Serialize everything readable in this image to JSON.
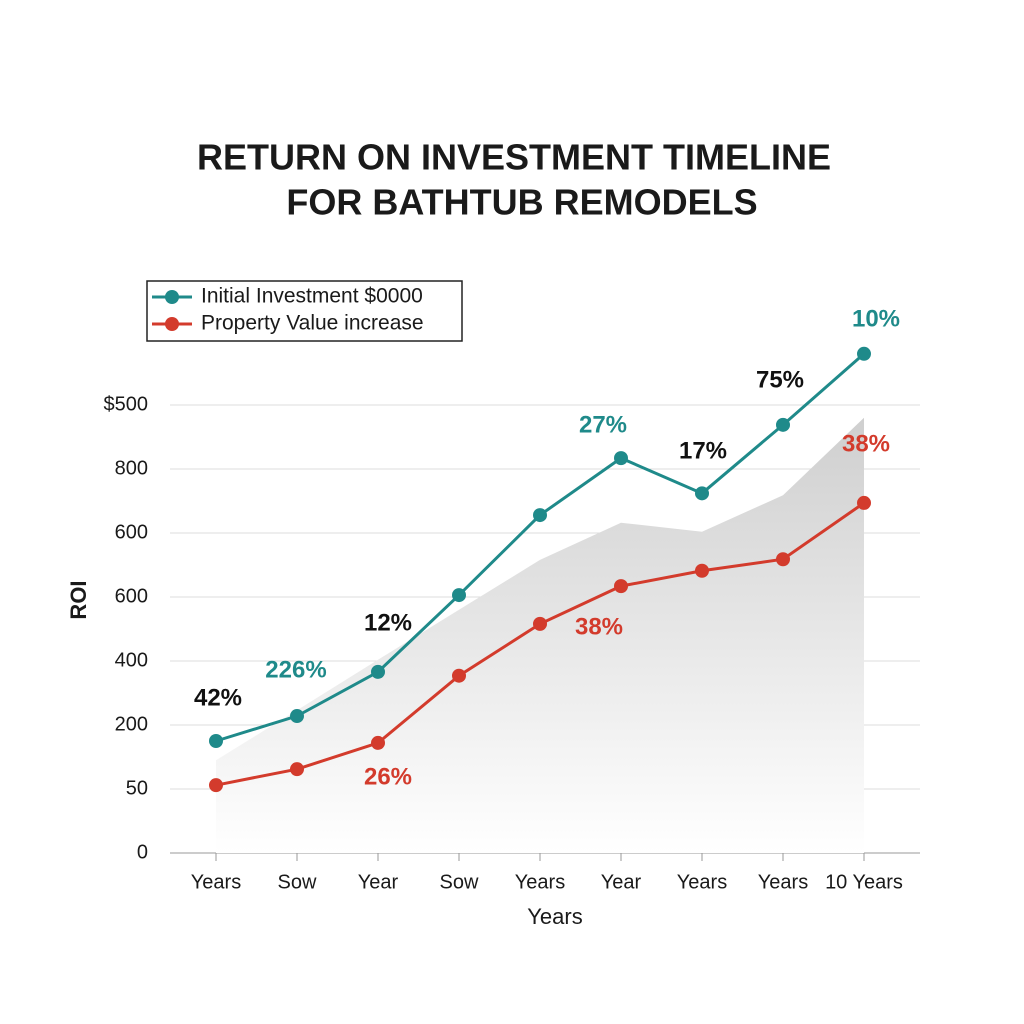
{
  "chart_data": {
    "type": "line",
    "title": [
      "RETURN ON INVESTMENT TIMELINE",
      "FOR BATHTUB REMODELS"
    ],
    "y_label": "ROI",
    "x_label": "Years",
    "categories": [
      "Years",
      "Sow",
      "Year",
      "Sow",
      "Years",
      "Year",
      "Years",
      "Years",
      "10 Years"
    ],
    "ylim": [
      0,
      800
    ],
    "yticks": [
      0,
      {
        "value": 100,
        "label": "50"
      },
      {
        "value": 200,
        "label": "200"
      },
      {
        "value": 300,
        "label": "400"
      },
      {
        "value": 400,
        "label": "600"
      },
      {
        "value": 500,
        "label": "600"
      },
      {
        "value": 600,
        "label": "800"
      },
      {
        "value": 700,
        "label": "$500"
      }
    ],
    "grid": true,
    "legend": "top-left",
    "series": [
      {
        "name": "Initial Investment  $0000",
        "color": "#1f8a8a",
        "values": [
          175,
          214,
          283,
          403,
          528,
          617,
          562,
          669,
          780
        ]
      },
      {
        "name": "Property Value increase",
        "color": "#d33b2c",
        "values": [
          106,
          131,
          172,
          277,
          358,
          417,
          441,
          459,
          547
        ]
      },
      {
        "type": "area",
        "color": "#d4d4d4",
        "values": [
          145,
          223,
          302,
          380,
          458,
          516,
          502,
          559,
          680
        ]
      }
    ],
    "annotations": [
      {
        "text": "42%",
        "color": "#111111"
      },
      {
        "text": "226%",
        "color": "#1f8a8a"
      },
      {
        "text": "12%",
        "color": "#111111"
      },
      {
        "text": "27%",
        "color": "#1f8a8a"
      },
      {
        "text": "17%",
        "color": "#111111"
      },
      {
        "text": "75%",
        "color": "#111111"
      },
      {
        "text": "10%",
        "color": "#1f8a8a"
      },
      {
        "text": "38%",
        "color": "#d33b2c"
      },
      {
        "text": "38%",
        "color": "#d33b2c"
      },
      {
        "text": "26%",
        "color": "#d33b2c"
      }
    ]
  }
}
